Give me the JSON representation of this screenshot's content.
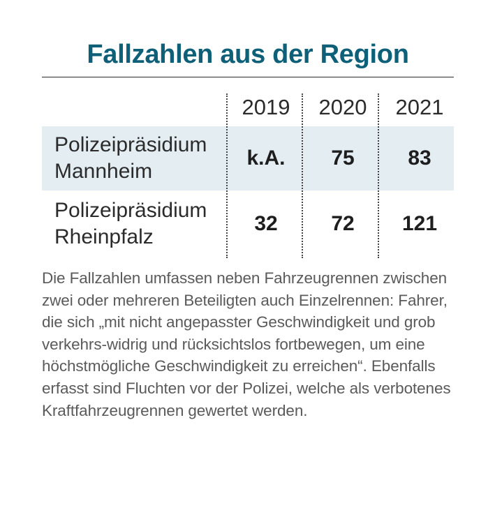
{
  "title": "Fallzahlen aus der Region",
  "years": [
    "2019",
    "2020",
    "2021"
  ],
  "rows": [
    {
      "label_line1": "Polizeipräsidium",
      "label_line2": "Mannheim",
      "values": [
        "k.A.",
        "75",
        "83"
      ]
    },
    {
      "label_line1": "Polizeipräsidium",
      "label_line2": "Rheinpfalz",
      "values": [
        "32",
        "72",
        "121"
      ]
    }
  ],
  "note": "Die Fallzahlen umfassen neben Fahrzeugrennen zwischen zwei oder mehreren Beteiligten auch Einzelrennen: Fahrer, die sich „mit nicht angepasster Geschwindigkeit und grob verkehrs-widrig und rücksichtslos fortbewegen, um eine höchstmögliche Geschwindigkeit zu erreichen“. Ebenfalls erfasst sind Fluchten vor der Polizei, welche als verbotenes Kraftfahrzeugrennen gewertet werden.",
  "colors": {
    "title": "#0e5f78",
    "row_highlight": "#e3edf2",
    "note_text": "#5a5a5a"
  }
}
